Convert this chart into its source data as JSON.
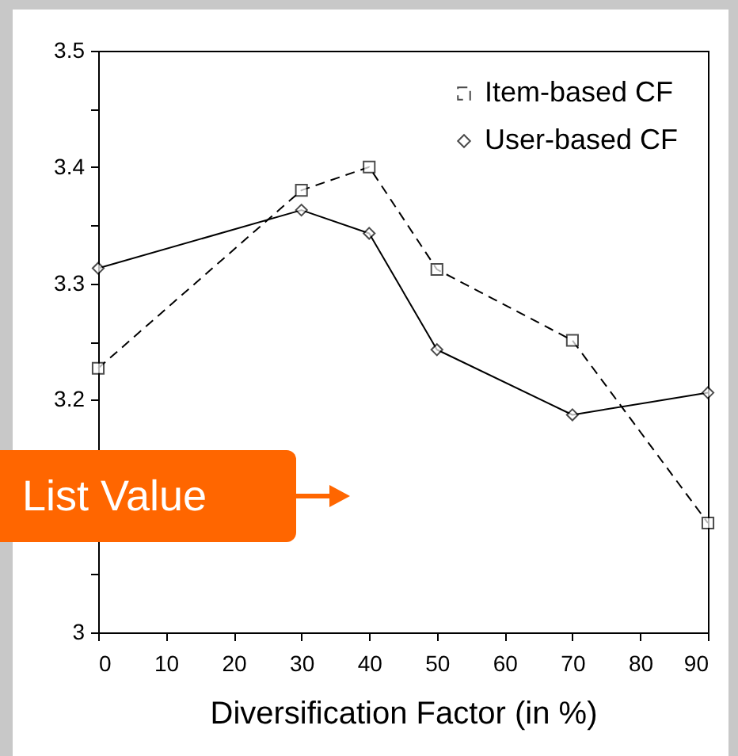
{
  "chart_data": {
    "type": "line",
    "xlabel": "Diversification Factor (in %)",
    "x": [
      0,
      30,
      40,
      50,
      70,
      90
    ],
    "series": [
      {
        "name": "Item-based CF",
        "color": "#000000",
        "marker": "square",
        "line_style": "dashed",
        "values": [
          3.227,
          3.38,
          3.4,
          3.312,
          3.251,
          3.094
        ]
      },
      {
        "name": "User-based CF",
        "color": "#000000",
        "marker": "diamond",
        "line_style": "solid",
        "values": [
          3.313,
          3.363,
          3.343,
          3.243,
          3.187,
          3.206
        ]
      }
    ],
    "xlim": [
      0,
      90
    ],
    "xticks": [
      0,
      10,
      20,
      30,
      40,
      50,
      60,
      70,
      80,
      90
    ],
    "ylim": [
      3,
      3.5
    ],
    "yticks": [
      3,
      {
        "value": 3.05,
        "label": null
      },
      {
        "value": 3.1,
        "label": null
      },
      {
        "value": 3.15,
        "label": null
      },
      3.2,
      {
        "value": 3.25,
        "label": null
      },
      3.3,
      {
        "value": 3.35,
        "label": null
      },
      3.4,
      {
        "value": 3.45,
        "label": null
      },
      3.5
    ],
    "legend": "top right",
    "grid": false,
    "annotations": [
      "List Value"
    ]
  }
}
